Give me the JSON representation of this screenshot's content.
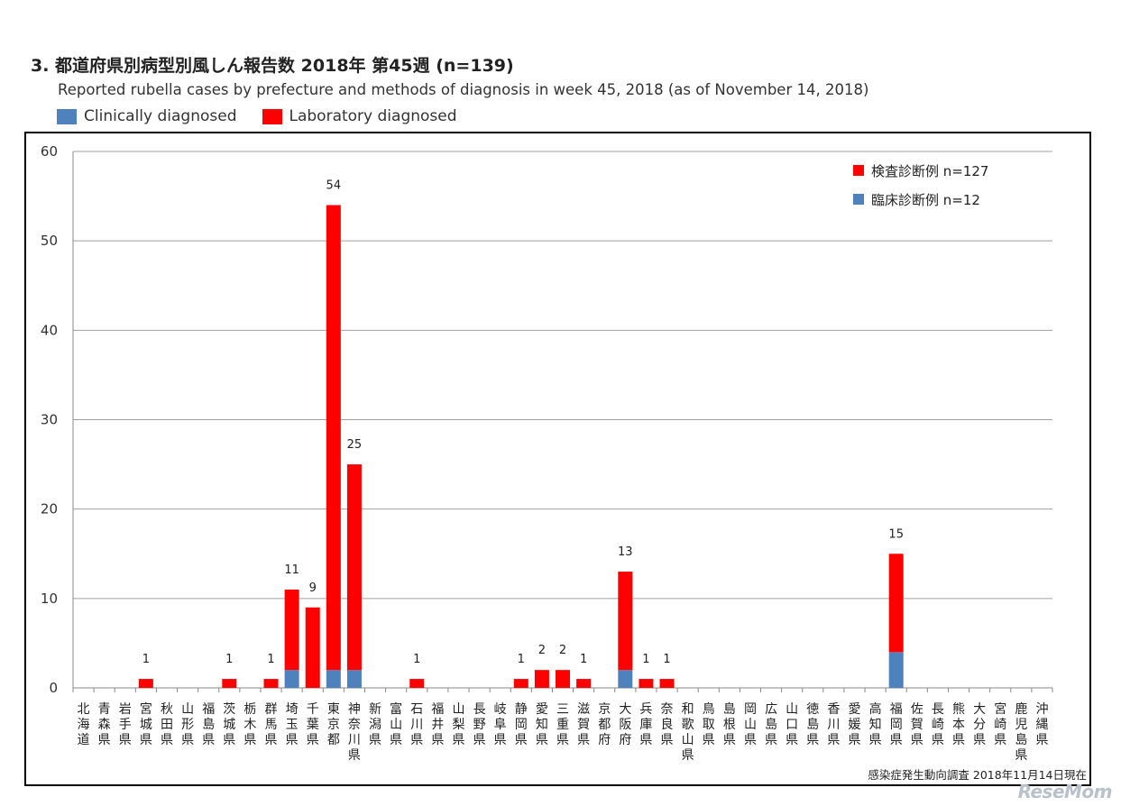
{
  "header": {
    "title": "3. 都道府県別病型別風しん報告数  2018年 第45週 (n=139)",
    "subtitle": "Reported rubella cases by prefecture and methods of diagnosis in week 45, 2018 (as of November 14, 2018)",
    "legend_clinical": "Clinically diagnosed",
    "legend_laboratory": "Laboratory diagnosed"
  },
  "colors": {
    "clinical": "#4f81bd",
    "laboratory": "#ff0000",
    "grid": "#a0a0a0"
  },
  "chart_data": {
    "type": "bar",
    "stacked": true,
    "title": "3. 都道府県別病型別風しん報告数  2018年 第45週 (n=139)",
    "ylim": [
      0,
      60
    ],
    "yticks": [
      0,
      10,
      20,
      30,
      40,
      50,
      60
    ],
    "legend": [
      "検査診断例 n=127",
      "臨床診断例 n=12"
    ],
    "legend_position": "top-right",
    "source_note": "感染症発生動向調査 2018年11月14日現在",
    "categories": [
      "北海道",
      "青森県",
      "岩手県",
      "宮城県",
      "秋田県",
      "山形県",
      "福島県",
      "茨城県",
      "栃木県",
      "群馬県",
      "埼玉県",
      "千葉県",
      "東京都",
      "神奈川県",
      "新潟県",
      "富山県",
      "石川県",
      "福井県",
      "山梨県",
      "長野県",
      "岐阜県",
      "静岡県",
      "愛知県",
      "三重県",
      "滋賀県",
      "京都府",
      "大阪府",
      "兵庫県",
      "奈良県",
      "和歌山県",
      "鳥取県",
      "島根県",
      "岡山県",
      "広島県",
      "山口県",
      "徳島県",
      "香川県",
      "愛媛県",
      "高知県",
      "福岡県",
      "佐賀県",
      "長崎県",
      "熊本県",
      "大分県",
      "宮崎県",
      "鹿児島県",
      "沖縄県"
    ],
    "series": [
      {
        "name": "臨床診断例 n=12",
        "values": [
          0,
          0,
          0,
          0,
          0,
          0,
          0,
          0,
          0,
          0,
          2,
          0,
          2,
          2,
          0,
          0,
          0,
          0,
          0,
          0,
          0,
          0,
          0,
          0,
          0,
          0,
          2,
          0,
          0,
          0,
          0,
          0,
          0,
          0,
          0,
          0,
          0,
          0,
          0,
          4,
          0,
          0,
          0,
          0,
          0,
          0,
          0
        ]
      },
      {
        "name": "検査診断例 n=127",
        "values": [
          0,
          0,
          0,
          1,
          0,
          0,
          0,
          1,
          0,
          1,
          9,
          9,
          52,
          23,
          0,
          0,
          1,
          0,
          0,
          0,
          0,
          1,
          2,
          2,
          1,
          0,
          11,
          1,
          1,
          0,
          0,
          0,
          0,
          0,
          0,
          0,
          0,
          0,
          0,
          11,
          0,
          0,
          0,
          0,
          0,
          0,
          0
        ]
      }
    ],
    "totals": [
      "",
      "",
      "",
      "1",
      "",
      "",
      "",
      "1",
      "",
      "1",
      "11",
      "9",
      "54",
      "25",
      "",
      "",
      "1",
      "",
      "",
      "",
      "",
      "1",
      "2",
      "2",
      "1",
      "",
      "13",
      "1",
      "1",
      "",
      "",
      "",
      "",
      "",
      "",
      "",
      "",
      "",
      "",
      "15",
      "",
      "",
      "",
      "",
      "",
      "",
      ""
    ]
  },
  "watermark": "ReseMom"
}
